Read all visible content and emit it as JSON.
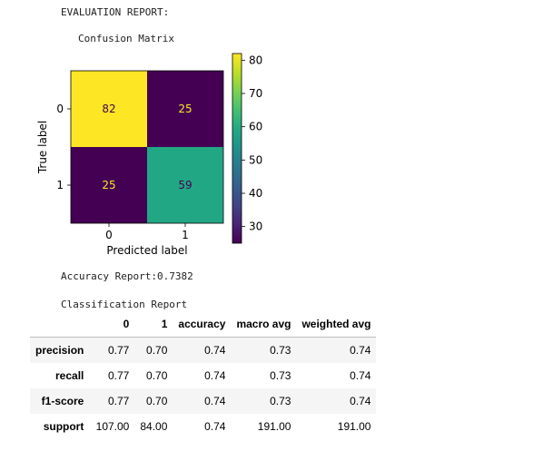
{
  "evaluation_title": "EVALUATION REPORT:",
  "confusion_matrix_title": "Confusion Matrix",
  "chart_data": {
    "type": "heatmap",
    "xlabel": "Predicted label",
    "ylabel": "True label",
    "x_ticks": [
      "0",
      "1"
    ],
    "y_ticks": [
      "0",
      "1"
    ],
    "matrix": [
      [
        82,
        25
      ],
      [
        25,
        59
      ]
    ],
    "colormap": "viridis",
    "colorbar": {
      "min": 25,
      "max": 82,
      "ticks": [
        "30",
        "40",
        "50",
        "60",
        "70",
        "80"
      ]
    },
    "text_colors": {
      "dark_cell": "#fde725",
      "light_cell": "#440154"
    }
  },
  "accuracy_text": "Accuracy Report:0.7382",
  "classification_title": "Classification Report",
  "report": {
    "columns": [
      "0",
      "1",
      "accuracy",
      "macro avg",
      "weighted avg"
    ],
    "rows": [
      {
        "label": "precision",
        "values": [
          "0.77",
          "0.70",
          "0.74",
          "0.73",
          "0.74"
        ]
      },
      {
        "label": "recall",
        "values": [
          "0.77",
          "0.70",
          "0.74",
          "0.73",
          "0.74"
        ]
      },
      {
        "label": "f1-score",
        "values": [
          "0.77",
          "0.70",
          "0.74",
          "0.73",
          "0.74"
        ]
      },
      {
        "label": "support",
        "values": [
          "107.00",
          "84.00",
          "0.74",
          "191.00",
          "191.00"
        ]
      }
    ]
  }
}
